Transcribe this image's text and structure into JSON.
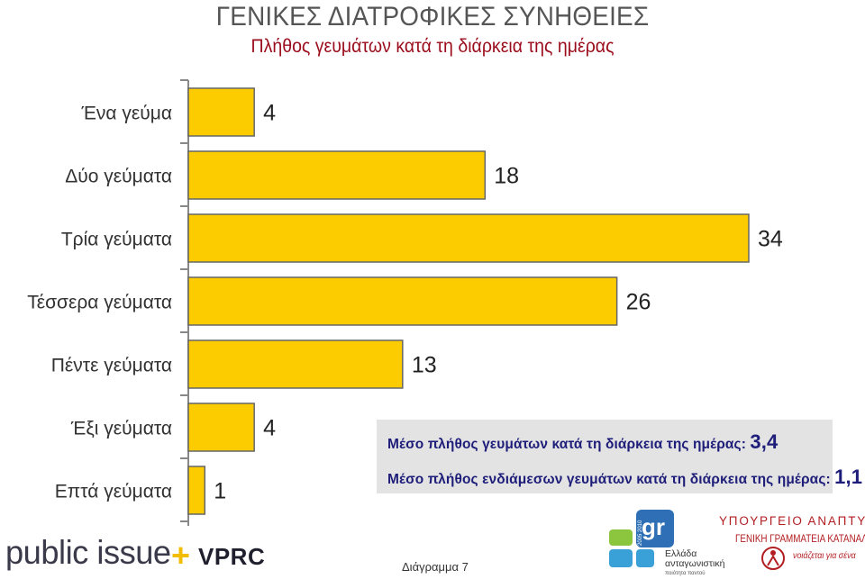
{
  "header": {
    "title": "ΓΕΝΙΚΕΣ ΔΙΑΤΡΟΦΙΚΕΣ ΣΥΝΗΘΕΙΕΣ",
    "subtitle": "Πλήθος γευμάτων κατά τη διάρκεια της ημέρας"
  },
  "chart_data": {
    "type": "bar",
    "orientation": "horizontal",
    "categories": [
      "Ένα γεύμα",
      "Δύο γεύματα",
      "Τρία γεύματα",
      "Τέσσερα γεύματα",
      "Πέντε γεύματα",
      "Έξι γεύματα",
      "Επτά γεύματα"
    ],
    "values": [
      4,
      18,
      34,
      26,
      13,
      4,
      1
    ],
    "data_labels": [
      "4",
      "18",
      "34",
      "26",
      "13",
      "4",
      "1"
    ],
    "title": "ΓΕΝΙΚΕΣ ΔΙΑΤΡΟΦΙΚΕΣ ΣΥΝΗΘΕΙΕΣ",
    "subtitle": "Πλήθος γευμάτων κατά τη διάρκεια της ημέρας",
    "xlim": [
      0,
      34
    ],
    "grid": false,
    "bar_color": "#fccc00"
  },
  "notes": {
    "mean_meals_label": "Μέσο πλήθος γευμάτων κατά τη διάρκεια της ημέρας:",
    "mean_meals_value": "3,4",
    "mean_snacks_label": "Μέσο πλήθος ενδιάμεσων γευμάτων κατά τη διάρκεια της ημέρας:",
    "mean_snacks_value": "1,1"
  },
  "footer": {
    "logo_public_issue": "public issue",
    "logo_plus": "+",
    "logo_vprc": "VPRC",
    "caption": "Διάγραμμα 7",
    "gr_logo_text": "gr",
    "gr_years": "2005 2010",
    "gr_caption_line1": "Ελλάδα",
    "gr_caption_line2": "ανταγωνιστική",
    "gr_caption_line3": "ποιότητα παντού",
    "ministry_line1": "ΥΠΟΥΡΓΕΙΟ ΑΝΑΠΤΥΞΗΣ",
    "ministry_line2": "ΓΕΝΙΚΗ ΓΡΑΜΜΑΤΕΙΑ ΚΑΤΑΝΑΛΩΤΗ",
    "ministry_line3": "νοιάζεται για σένα"
  },
  "colors": {
    "bar": "#fccc00",
    "subtitle": "#9b0c1c",
    "note_text": "#1e1e7a",
    "note_bg": "#e3e3e3"
  }
}
